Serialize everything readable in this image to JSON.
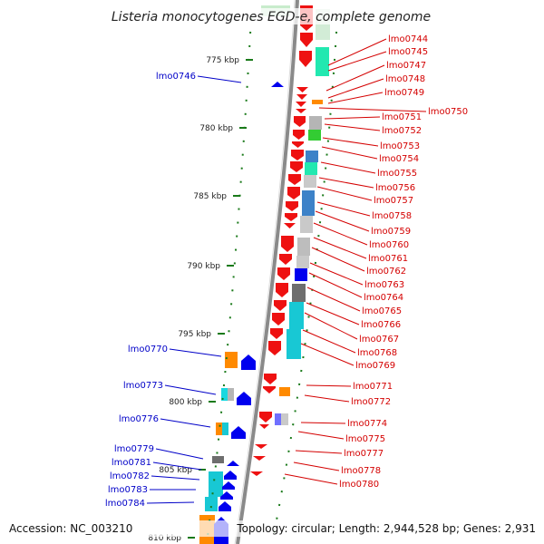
{
  "title": "Listeria monocytogenes EGD-e, complete genome",
  "accession": "Accession: NC_003210",
  "topology": "Topology: circular; Length: 2,944,528 bp; Genes: 2,931",
  "colors": {
    "forward_label": "#d40000",
    "reverse_label": "#0000c8",
    "forward_gene": "#ee1111",
    "reverse_gene": "#0000ee",
    "backbone": "#8a8a8a",
    "tick": "#1a7a1a"
  },
  "ticks": [
    {
      "label": "775 kbp"
    },
    {
      "label": "780 kbp"
    },
    {
      "label": "785 kbp"
    },
    {
      "label": "790 kbp"
    },
    {
      "label": "795 kbp"
    },
    {
      "label": "800 kbp"
    },
    {
      "label": "805 kbp"
    },
    {
      "label": "810 kbp"
    }
  ],
  "forward_labels": [
    "lmo0744",
    "lmo0745",
    "lmo0747",
    "lmo0748",
    "lmo0749",
    "lmo0750",
    "lmo0751",
    "lmo0752",
    "lmo0753",
    "lmo0754",
    "lmo0755",
    "lmo0756",
    "lmo0757",
    "lmo0758",
    "lmo0759",
    "lmo0760",
    "lmo0761",
    "lmo0762",
    "lmo0763",
    "lmo0764",
    "lmo0765",
    "lmo0766",
    "lmo0767",
    "lmo0768",
    "lmo0769",
    "lmo0771",
    "lmo0772",
    "lmo0774",
    "lmo0775",
    "lmo0777",
    "lmo0778",
    "lmo0780"
  ],
  "reverse_labels": [
    "lmo0746",
    "lmo0770",
    "lmo0773",
    "lmo0776",
    "lmo0779",
    "lmo0781",
    "lmo0782",
    "lmo0783",
    "lmo0784"
  ]
}
